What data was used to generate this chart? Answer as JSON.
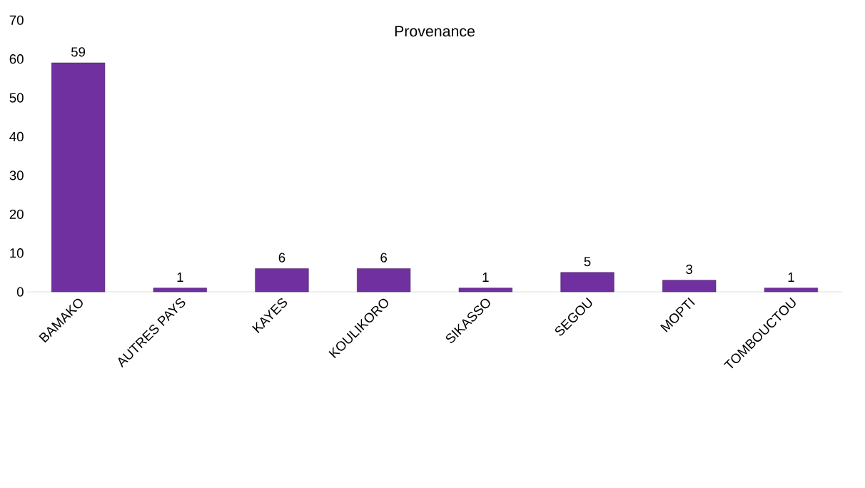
{
  "chart_data": {
    "type": "bar",
    "title": "Provenance",
    "categories": [
      "BAMAKO",
      "AUTRES PAYS",
      "KAYES",
      "KOULIKORO",
      "SIKASSO",
      "SEGOU",
      "MOPTI",
      "TOMBOUCTOU"
    ],
    "values": [
      59,
      1,
      6,
      6,
      1,
      5,
      3,
      1
    ],
    "color": "#7030a0",
    "ylim": [
      0,
      70
    ],
    "yticks": [
      0,
      10,
      20,
      30,
      40,
      50,
      60,
      70
    ],
    "data_labels": true,
    "grid": false
  }
}
